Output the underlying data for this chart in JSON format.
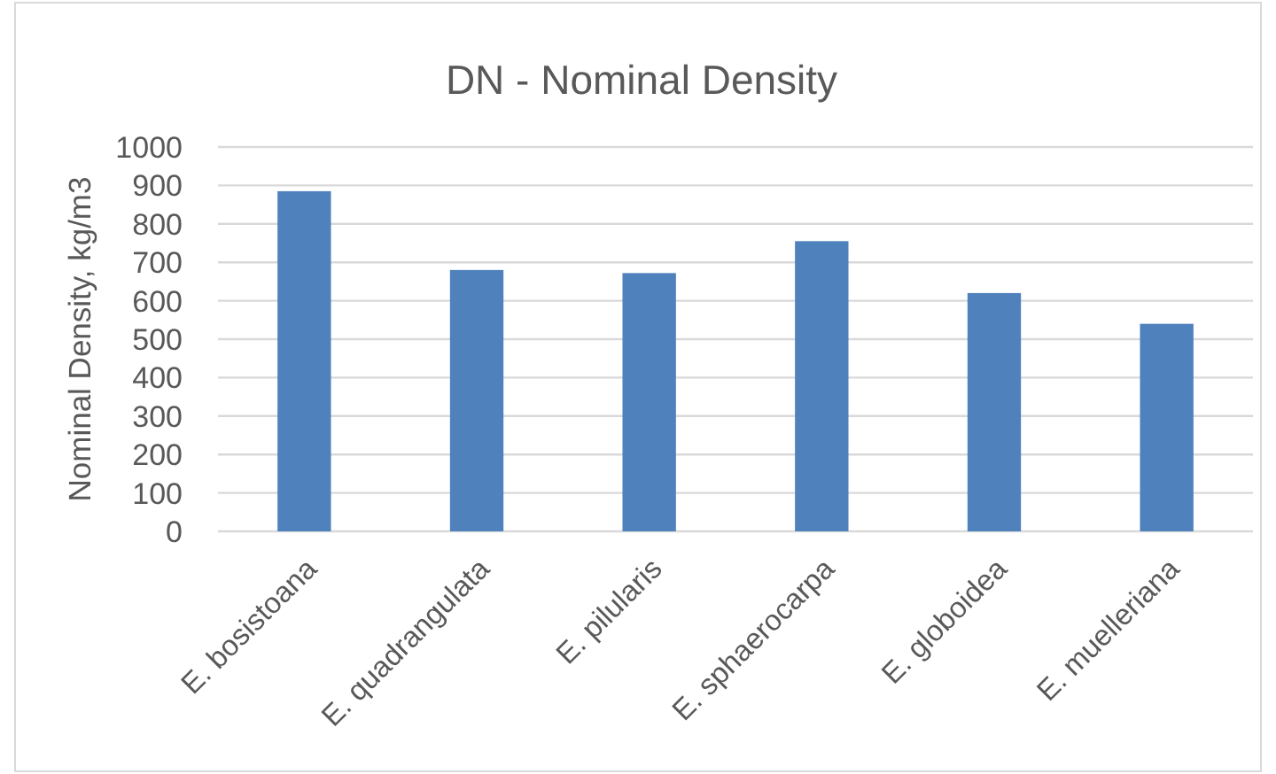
{
  "chart_data": {
    "type": "bar",
    "title": "DN - Nominal Density",
    "ylabel": "Nominal Density, kg/m3",
    "categories": [
      "E. bosistoana",
      "E. quadrangulata",
      "E. pilularis",
      "E. sphaerocarpa",
      "E. globoidea",
      "E. muelleriana"
    ],
    "values": [
      885,
      680,
      672,
      755,
      620,
      540
    ],
    "color": "#4f81bd",
    "ylim": [
      0,
      1000
    ],
    "yticks": [
      0,
      100,
      200,
      300,
      400,
      500,
      600,
      700,
      800,
      900,
      1000
    ],
    "grid": "y"
  }
}
